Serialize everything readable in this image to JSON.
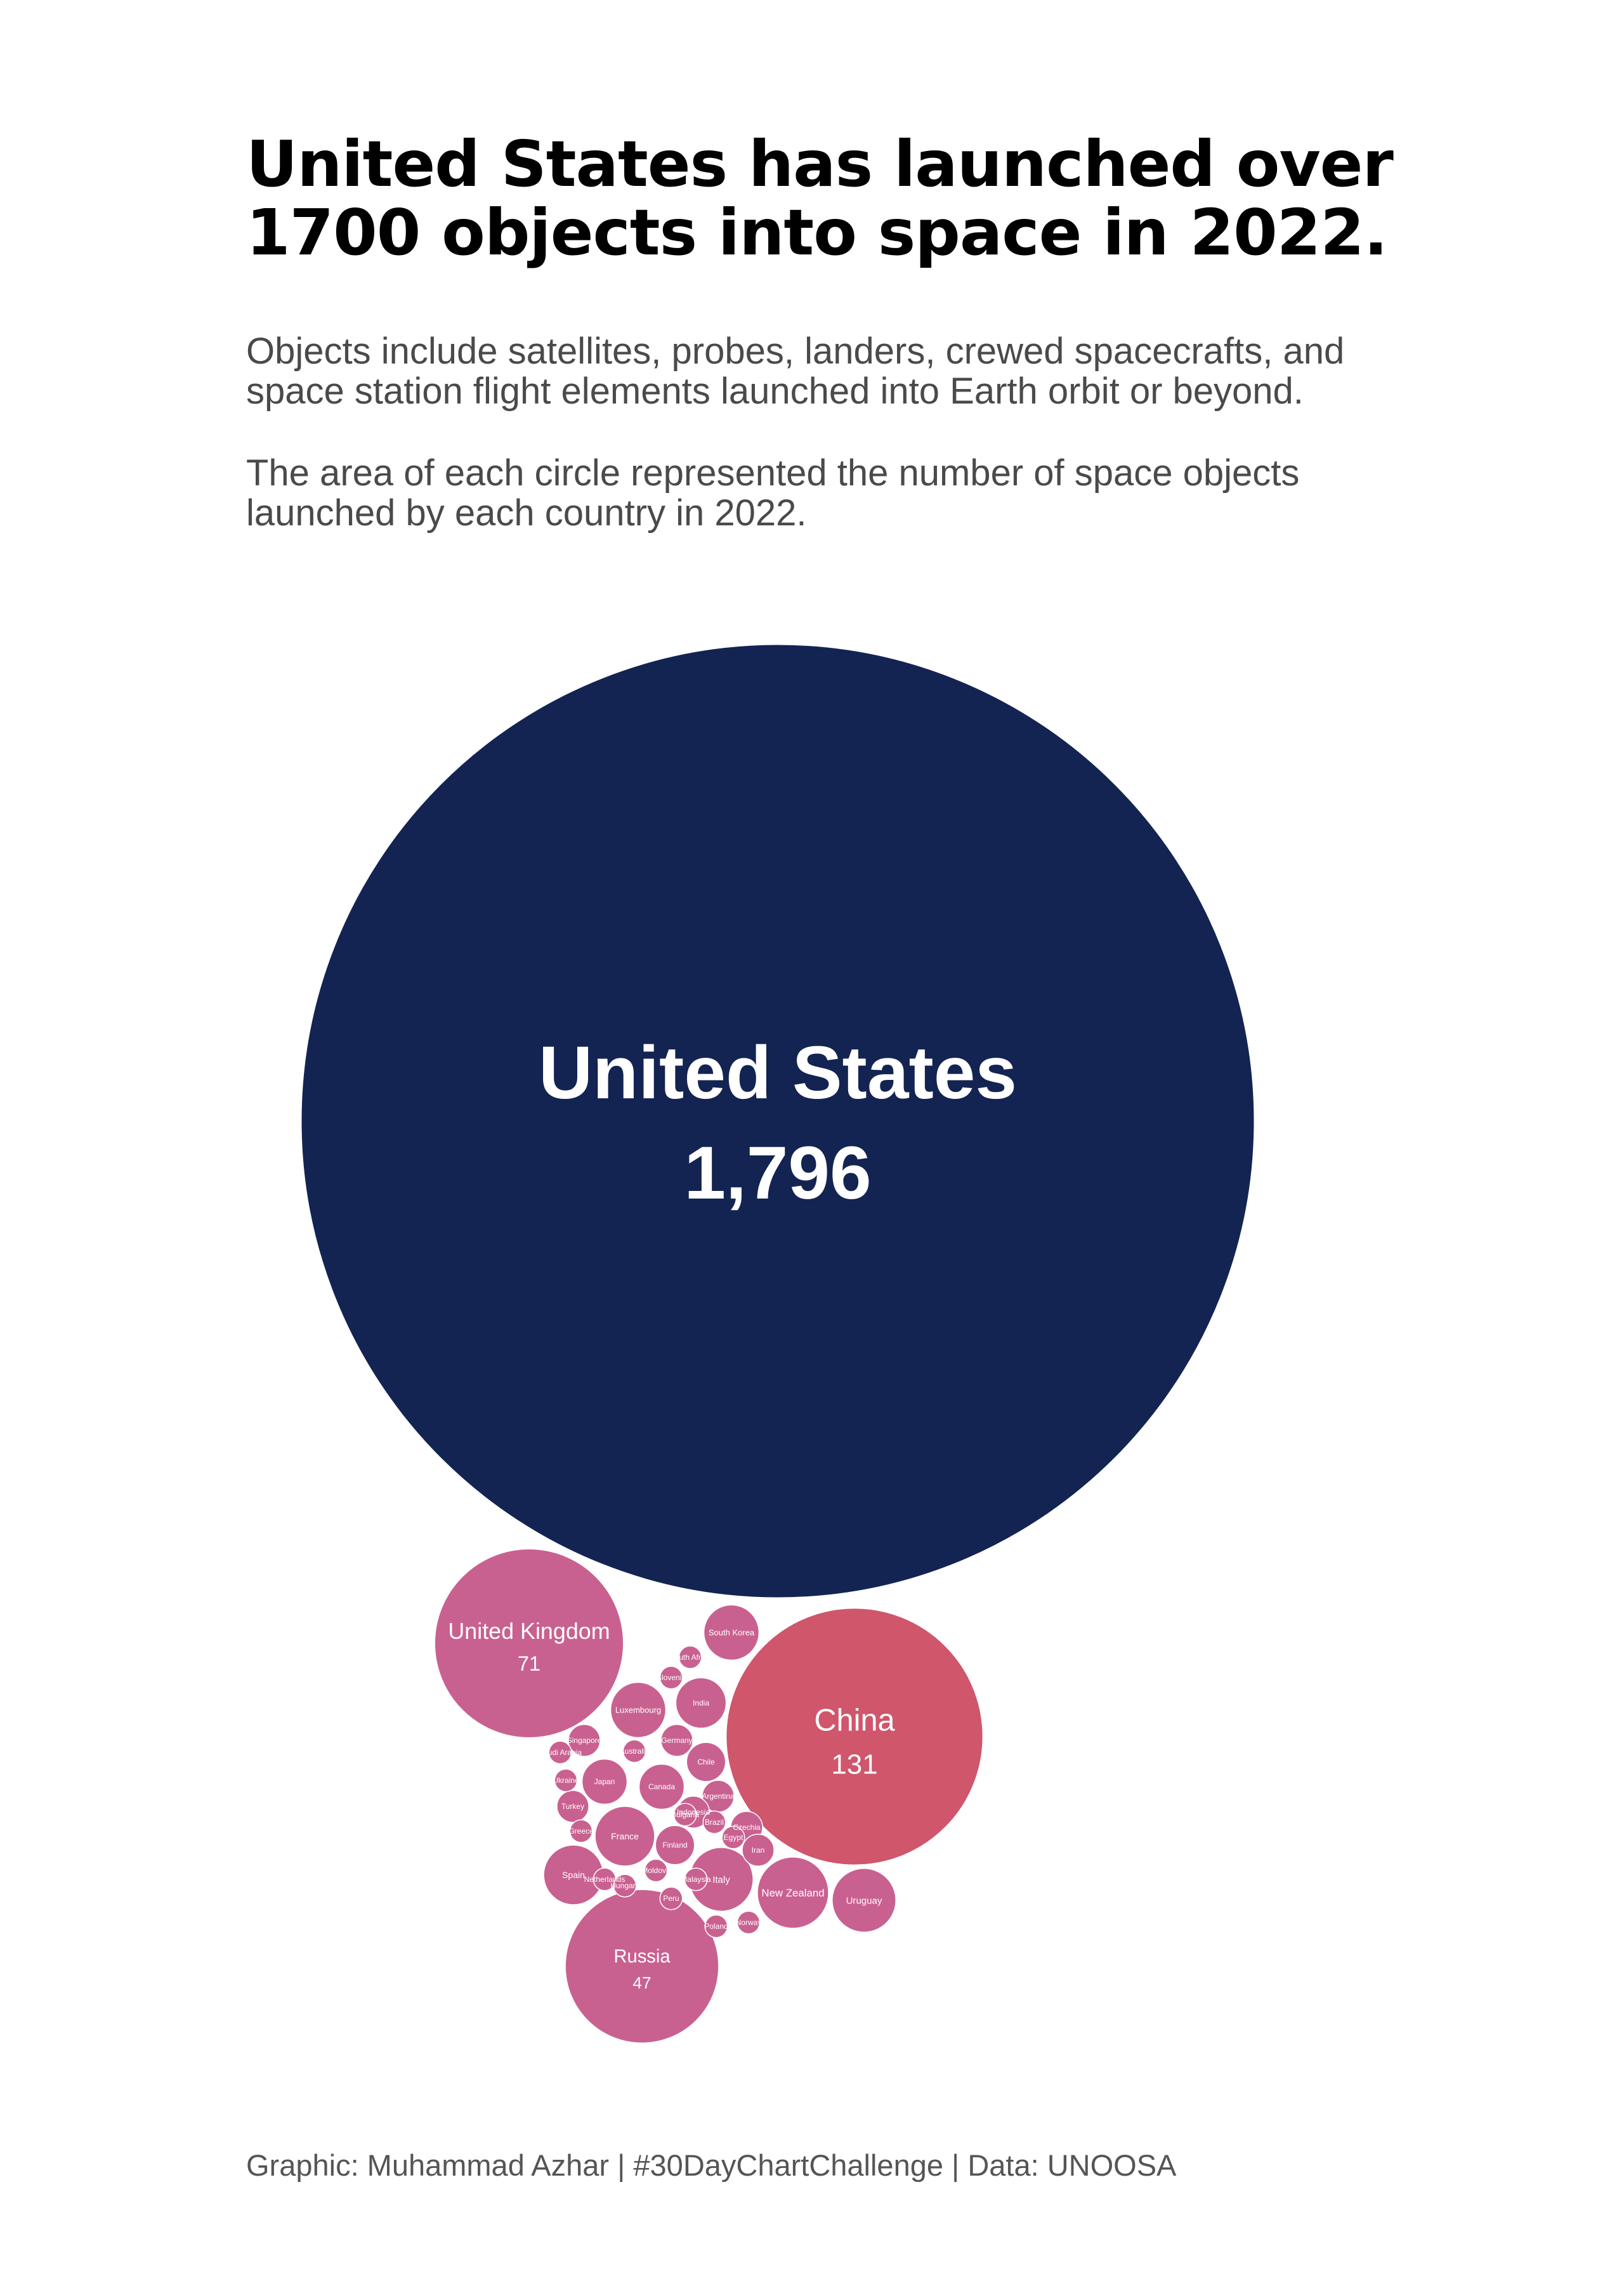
{
  "header": {
    "title_line1": "United States has launched over",
    "title_line2": "1700 objects into space in 2022.",
    "subtitle1_line1": "Objects include satellites, probes, landers, crewed spacecrafts, and",
    "subtitle1_line2": "space station flight elements launched into Earth orbit or beyond.",
    "subtitle2_line1": "The area of each circle represented the number of space objects",
    "subtitle2_line2": "launched by each country in 2022."
  },
  "footer": {
    "caption": "Graphic: Muhammad Azhar | #30DayChartChallenge | Data: UNOOSA"
  },
  "colors": {
    "background": "#ffffff",
    "united_states": "#132452",
    "china": "#cf566b",
    "other_countries": "#c96190",
    "label": "#ffffff"
  },
  "chart_data": {
    "type": "bubble",
    "encoding": "circle area proportional to number of objects launched",
    "value_labels_shown_for": [
      "United States",
      "China",
      "United Kingdom",
      "Russia"
    ],
    "countries": [
      {
        "name": "United States",
        "value": 1796,
        "display_value": "1,796"
      },
      {
        "name": "China",
        "value": 131,
        "display_value": "131"
      },
      {
        "name": "United Kingdom",
        "value": 71,
        "display_value": "71"
      },
      {
        "name": "Russia",
        "value": 47,
        "display_value": "47"
      },
      {
        "name": "New Zealand",
        "value": 10
      },
      {
        "name": "Italy",
        "value": 8
      },
      {
        "name": "Uruguay",
        "value": 8
      },
      {
        "name": "France",
        "value": 7
      },
      {
        "name": "Spain",
        "value": 7
      },
      {
        "name": "Luxembourg",
        "value": 6
      },
      {
        "name": "South Korea",
        "value": 6
      },
      {
        "name": "India",
        "value": 5
      },
      {
        "name": "Canada",
        "value": 4
      },
      {
        "name": "Japan",
        "value": 4
      },
      {
        "name": "Finland",
        "value": 3
      },
      {
        "name": "Chile",
        "value": 3
      },
      {
        "name": "Argentina",
        "value": 2
      },
      {
        "name": "Czechia",
        "value": 2
      },
      {
        "name": "Germany",
        "value": 2
      },
      {
        "name": "Indonesia",
        "value": 2
      },
      {
        "name": "Singapore",
        "value": 2
      },
      {
        "name": "Iran",
        "value": 2
      },
      {
        "name": "Turkey",
        "value": 2
      },
      {
        "name": "South Africa",
        "value": 1
      },
      {
        "name": "Slovenia",
        "value": 1
      },
      {
        "name": "Brazil",
        "value": 1
      },
      {
        "name": "Egypt",
        "value": 1
      },
      {
        "name": "Moldova",
        "value": 1
      },
      {
        "name": "Malaysia",
        "value": 1
      },
      {
        "name": "Poland",
        "value": 1
      },
      {
        "name": "Norway",
        "value": 1
      },
      {
        "name": "Bulgaria",
        "value": 1
      },
      {
        "name": "Greece",
        "value": 1
      },
      {
        "name": "Ukraine",
        "value": 1
      },
      {
        "name": "Netherlands",
        "value": 1
      },
      {
        "name": "Hungary",
        "value": 1
      },
      {
        "name": "Saudi Arabia",
        "value": 1
      },
      {
        "name": "Australia",
        "value": 1
      },
      {
        "name": "Peru",
        "value": 1
      }
    ]
  }
}
